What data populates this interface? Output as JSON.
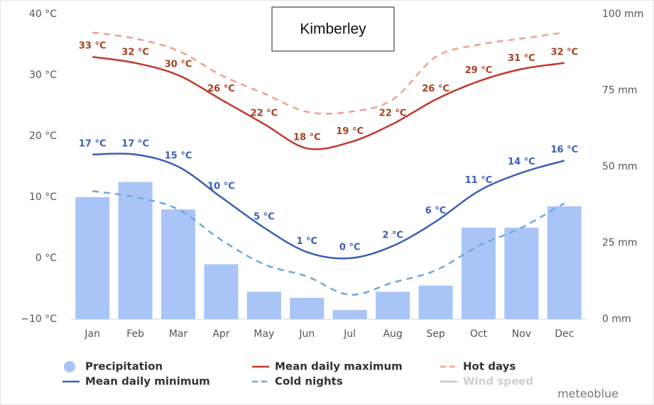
{
  "chart_data": {
    "type": "combo",
    "title": "Kimberley",
    "categories": [
      "Jan",
      "Feb",
      "Mar",
      "Apr",
      "May",
      "Jun",
      "Jul",
      "Aug",
      "Sep",
      "Oct",
      "Nov",
      "Dec"
    ],
    "ylim": [
      -10,
      40
    ],
    "yticks": [
      {
        "value": -10,
        "label": "−10 °C"
      },
      {
        "value": 0,
        "label": "0 °C"
      },
      {
        "value": 10,
        "label": "10 °C"
      },
      {
        "value": 20,
        "label": "20 °C"
      },
      {
        "value": 30,
        "label": "30 °C"
      },
      {
        "value": 40,
        "label": "40 °C"
      }
    ],
    "y2lim": [
      0,
      100
    ],
    "y2ticks": [
      {
        "value": 0,
        "label": "0 mm"
      },
      {
        "value": 25,
        "label": "25 mm"
      },
      {
        "value": 50,
        "label": "50 mm"
      },
      {
        "value": 75,
        "label": "75 mm"
      },
      {
        "value": 100,
        "label": "100 mm"
      }
    ],
    "grid": false,
    "series": [
      {
        "name": "Precipitation",
        "type": "bar",
        "axis": "y2",
        "color": "#a9c4f7",
        "values": [
          40,
          45,
          36,
          18,
          9,
          7,
          3,
          9,
          11,
          30,
          30,
          37
        ]
      },
      {
        "name": "Mean daily maximum",
        "type": "line",
        "color": "#c0392b",
        "dashed": false,
        "label_color": "#a8401f",
        "values": [
          33,
          32,
          30,
          26,
          22,
          18,
          19,
          22,
          26,
          29,
          31,
          32
        ],
        "value_labels": [
          "33 °C",
          "32 °C",
          "30 °C",
          "26 °C",
          "22 °C",
          "18 °C",
          "19 °C",
          "22 °C",
          "26 °C",
          "29 °C",
          "31 °C",
          "32 °C"
        ]
      },
      {
        "name": "Hot days",
        "type": "line",
        "color": "#f2a090",
        "dashed": true,
        "values": [
          37,
          36,
          34,
          30,
          27,
          24,
          24,
          26,
          33,
          35,
          36,
          37
        ]
      },
      {
        "name": "Mean daily minimum",
        "type": "line",
        "color": "#3a5fb5",
        "dashed": false,
        "label_color": "#3a5fb5",
        "values": [
          17,
          17,
          15,
          10,
          5,
          1,
          0,
          2,
          6,
          11,
          14,
          16
        ],
        "value_labels": [
          "17 °C",
          "17 °C",
          "15 °C",
          "10 °C",
          "5 °C",
          "1 °C",
          "0 °C",
          "2 °C",
          "6 °C",
          "11 °C",
          "14 °C",
          "16 °C"
        ]
      },
      {
        "name": "Cold nights",
        "type": "line",
        "color": "#6fa8dc",
        "dashed": true,
        "values": [
          11,
          10,
          8,
          3,
          -1,
          -3,
          -6,
          -4,
          -2,
          2,
          5,
          9
        ]
      },
      {
        "name": "Wind speed",
        "type": "line",
        "color": "#c8c8c8",
        "dashed": false,
        "values": [
          null,
          null,
          null,
          null,
          null,
          null,
          null,
          null,
          null,
          null,
          null,
          null
        ]
      }
    ],
    "credit": "meteoblue"
  }
}
